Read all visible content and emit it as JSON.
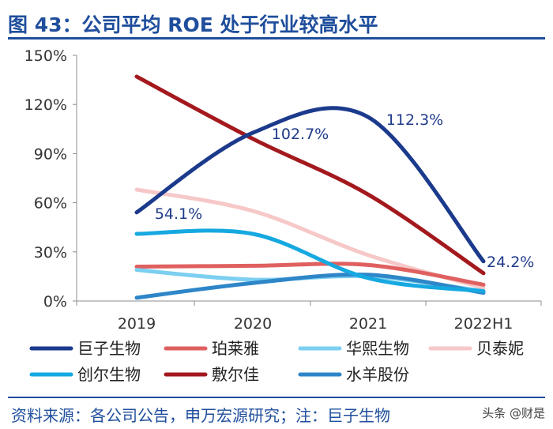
{
  "title": "图 43：公司平均 ROE 处于行业较高水平",
  "source": "资料来源：各公司公告，申万宏源研究；注：巨子生物",
  "watermark": "头条 @财是",
  "chart_data": {
    "type": "line",
    "categories": [
      "2019",
      "2020",
      "2021",
      "2022H1"
    ],
    "ylim": [
      0,
      150
    ],
    "yticks": [
      "0%",
      "30%",
      "60%",
      "90%",
      "120%",
      "150%"
    ],
    "ytick_values": [
      0,
      30,
      60,
      90,
      120,
      150
    ],
    "grid": false,
    "legend_position": "bottom",
    "series": [
      {
        "name": "巨子生物",
        "values": [
          54.1,
          102.7,
          112.3,
          24.2
        ],
        "color": "#1b3a8c",
        "labels": [
          "54.1%",
          "102.7%",
          "112.3%",
          "24.2%"
        ]
      },
      {
        "name": "珀莱雅",
        "values": [
          21,
          21.5,
          22,
          10
        ],
        "color": "#e06060"
      },
      {
        "name": "华熙生物",
        "values": [
          19,
          13,
          15,
          6
        ],
        "color": "#7ccff0"
      },
      {
        "name": "贝泰妮",
        "values": [
          68,
          55,
          28,
          8
        ],
        "color": "#f6c8c8"
      },
      {
        "name": "创尔生物",
        "values": [
          41,
          41,
          14,
          6
        ],
        "color": "#16a8e0"
      },
      {
        "name": "敷尔佳",
        "values": [
          137,
          99,
          65,
          17
        ],
        "color": "#a3191e"
      },
      {
        "name": "水羊股份",
        "values": [
          2,
          11,
          16,
          5
        ],
        "color": "#2e86c8"
      }
    ]
  }
}
